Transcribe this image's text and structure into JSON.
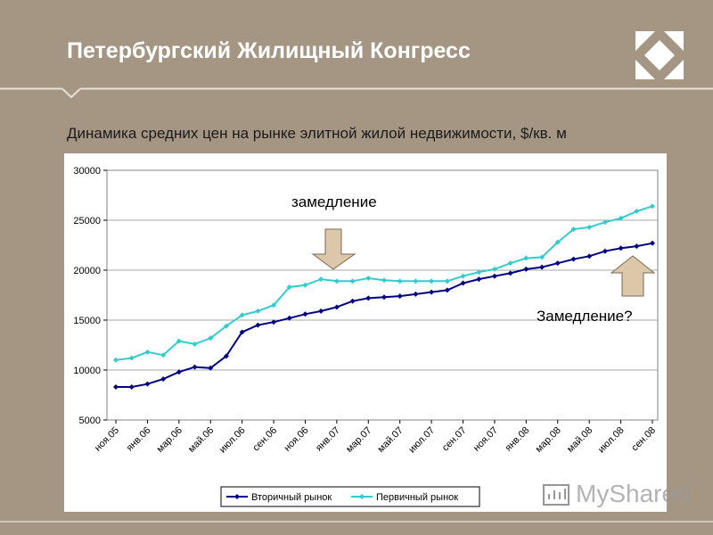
{
  "header": {
    "title": "Петербургский Жилищный Конгресс"
  },
  "slide": {
    "subtitle": "Динамика средних цен на рынке элитной жилой недвижимости, $/кв. м"
  },
  "annotations": {
    "slowdown": "замедление",
    "slowdown_question": "Замедление?"
  },
  "watermark": {
    "text": "MyShared"
  },
  "colors": {
    "background": "#a59684",
    "secondary_market": "#000080",
    "primary_market": "#33cccc",
    "arrow_fill": "#dcc7a8"
  },
  "chart_data": {
    "type": "line",
    "title": "",
    "xlabel": "",
    "ylabel": "",
    "ylim": [
      5000,
      30000
    ],
    "yticks": [
      5000,
      10000,
      15000,
      20000,
      25000,
      30000
    ],
    "ytick_labels": [
      "5000",
      "10000",
      "15000",
      "20000",
      "25000",
      "30000"
    ],
    "xtick_labels": [
      "ноя.05",
      "янв.06",
      "мар.06",
      "май.06",
      "июл.06",
      "сен.06",
      "ноя.06",
      "янв.07",
      "мар.07",
      "май.07",
      "июл.07",
      "сен.07",
      "ноя.07",
      "янв.08",
      "мар.08",
      "май.08",
      "июл.08",
      "сен.08"
    ],
    "grid": "horizontal",
    "legend": "bottom",
    "series": [
      {
        "name": "Вторичный рынок",
        "values": [
          8300,
          8300,
          8600,
          9100,
          9800,
          10300,
          10200,
          11400,
          13800,
          14500,
          14800,
          15200,
          15600,
          15900,
          16300,
          16900,
          17200,
          17300,
          17400,
          17600,
          17800,
          18000,
          18700,
          19100,
          19400,
          19700,
          20100,
          20300,
          20700,
          21100,
          21400,
          21900,
          22200,
          22400,
          22700
        ]
      },
      {
        "name": "Первичный рынок",
        "values": [
          11000,
          11200,
          11800,
          11500,
          12900,
          12600,
          13200,
          14400,
          15500,
          15900,
          16500,
          18300,
          18500,
          19100,
          18900,
          18900,
          19200,
          19000,
          18900,
          18900,
          18900,
          18900,
          19400,
          19800,
          20100,
          20700,
          21200,
          21300,
          22800,
          24100,
          24300,
          24800,
          25200,
          25900,
          26400
        ]
      }
    ]
  }
}
